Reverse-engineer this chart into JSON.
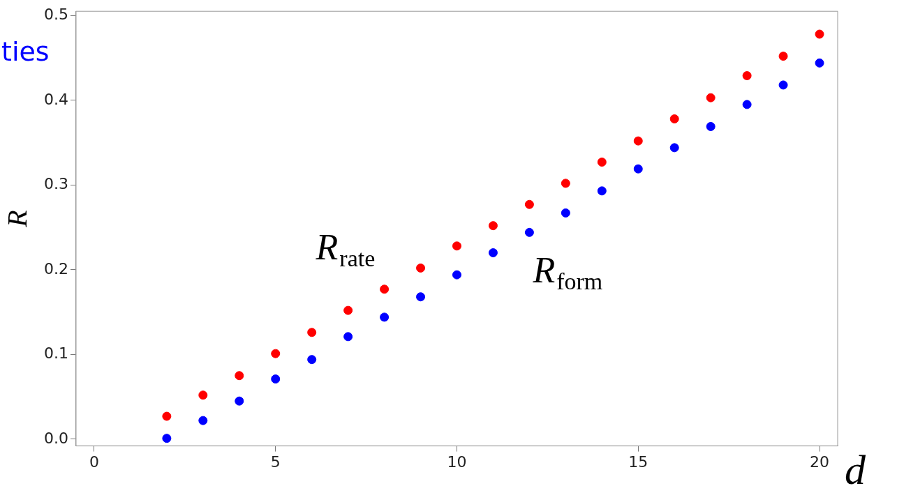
{
  "chart_data": {
    "type": "scatter",
    "xlabel": "d",
    "ylabel": "R",
    "annotations": [
      "ties"
    ],
    "x": [
      2,
      3,
      4,
      5,
      6,
      7,
      8,
      9,
      10,
      11,
      12,
      13,
      14,
      15,
      16,
      17,
      18,
      19,
      20
    ],
    "series": [
      {
        "name": "R$_{rate}$",
        "color": "#ff0000",
        "values": [
          0.027,
          0.052,
          0.075,
          0.101,
          0.126,
          0.152,
          0.177,
          0.202,
          0.228,
          0.252,
          0.277,
          0.302,
          0.327,
          0.352,
          0.378,
          0.403,
          0.429,
          0.452,
          0.478
        ]
      },
      {
        "name": "R$_{form}$",
        "color": "#0000ff",
        "values": [
          0.001,
          0.022,
          0.045,
          0.071,
          0.094,
          0.121,
          0.144,
          0.168,
          0.194,
          0.22,
          0.244,
          0.267,
          0.293,
          0.319,
          0.344,
          0.369,
          0.395,
          0.418,
          0.444
        ]
      }
    ],
    "xlim": [
      -0.5,
      20.5
    ],
    "xticks": [
      0,
      5,
      10,
      15,
      20
    ],
    "ylim": [
      -0.008,
      0.505
    ],
    "yticks": [
      {
        "value": 0,
        "label": "0.0"
      },
      {
        "value": 0.1,
        "label": "0.1"
      },
      {
        "value": 0.2,
        "label": "0.2"
      },
      {
        "value": 0.3,
        "label": "0.3"
      },
      {
        "value": 0.4,
        "label": "0.4"
      },
      {
        "value": 0.5,
        "label": "0.5"
      }
    ],
    "grid": false,
    "legend": false,
    "marker": "circle"
  }
}
